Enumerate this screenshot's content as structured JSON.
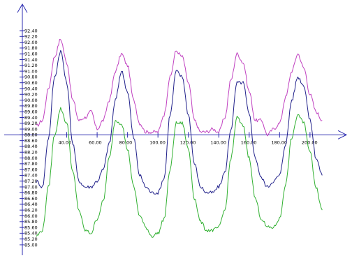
{
  "chart_data": {
    "type": "line",
    "x_ticks": [
      "40.00",
      "60.00",
      "80.00",
      "100.00",
      "120.00",
      "140.00",
      "160.00",
      "180.00",
      "200.00"
    ],
    "x_tick_values": [
      40,
      60,
      80,
      100,
      120,
      140,
      160,
      180,
      200
    ],
    "y_ticks": [
      "92.40",
      "92.20",
      "92.00",
      "91.80",
      "91.60",
      "91.40",
      "91.20",
      "91.00",
      "90.80",
      "90.60",
      "90.40",
      "90.20",
      "90.00",
      "89.80",
      "89.60",
      "89.40",
      "89.20",
      "89.00",
      "88.80",
      "88.60",
      "88.40",
      "88.20",
      "88.00",
      "87.80",
      "87.60",
      "87.40",
      "87.20",
      "87.00",
      "86.80",
      "86.60",
      "86.40",
      "86.20",
      "86.00",
      "85.80",
      "85.60",
      "85.40",
      "85.20",
      "85.00"
    ],
    "y_tick_values": [
      92.4,
      92.2,
      92.0,
      91.8,
      91.6,
      91.4,
      91.2,
      91.0,
      90.8,
      90.6,
      90.4,
      90.2,
      90.0,
      89.8,
      89.6,
      89.4,
      89.2,
      89.0,
      88.8,
      88.6,
      88.4,
      88.2,
      88.0,
      87.8,
      87.6,
      87.4,
      87.2,
      87.0,
      86.8,
      86.6,
      86.4,
      86.2,
      86.0,
      85.8,
      85.6,
      85.4,
      85.2,
      85.0
    ],
    "xlim": [
      20,
      212
    ],
    "ylim": [
      85.0,
      92.4
    ],
    "x_axis_at_y": 88.8,
    "grid": false,
    "legend": "none",
    "series": [
      {
        "color": "#c040c0",
        "x": [
          20,
          24,
          28,
          32,
          36,
          40,
          44,
          48,
          52,
          56,
          60,
          64,
          68,
          72,
          76,
          80,
          84,
          88,
          92,
          96,
          100,
          104,
          108,
          112,
          116,
          120,
          124,
          128,
          132,
          136,
          140,
          144,
          148,
          152,
          156,
          160,
          164,
          168,
          172,
          176,
          180,
          184,
          188,
          192,
          196,
          200,
          204,
          208
        ],
        "y": [
          89.1,
          89.3,
          90.4,
          91.5,
          92.1,
          91.3,
          90.0,
          89.3,
          89.4,
          89.6,
          89.0,
          89.3,
          90.0,
          91.0,
          91.6,
          91.2,
          90.0,
          89.2,
          88.9,
          88.9,
          88.9,
          89.5,
          90.8,
          91.7,
          91.5,
          90.6,
          89.3,
          88.9,
          88.9,
          89.0,
          88.9,
          89.4,
          90.7,
          91.6,
          91.3,
          90.3,
          89.3,
          89.3,
          88.8,
          89.0,
          89.2,
          90.1,
          91.0,
          91.6,
          91.1,
          90.2,
          89.6,
          89.3
        ]
      },
      {
        "color": "#20208a",
        "x": [
          20,
          24,
          28,
          32,
          36,
          40,
          44,
          48,
          52,
          56,
          60,
          64,
          68,
          72,
          76,
          80,
          84,
          88,
          92,
          96,
          100,
          104,
          108,
          112,
          116,
          120,
          124,
          128,
          132,
          136,
          140,
          144,
          148,
          152,
          156,
          160,
          164,
          168,
          172,
          176,
          180,
          184,
          188,
          192,
          196,
          200,
          204,
          208
        ],
        "y": [
          87.2,
          87.0,
          88.7,
          90.8,
          91.7,
          90.6,
          88.5,
          87.2,
          87.0,
          87.0,
          87.2,
          87.6,
          88.5,
          90.0,
          91.0,
          90.3,
          88.7,
          87.4,
          87.0,
          86.8,
          86.8,
          87.3,
          89.5,
          91.0,
          90.8,
          89.5,
          87.8,
          87.0,
          86.8,
          86.8,
          87.0,
          87.5,
          89.0,
          90.6,
          90.6,
          89.5,
          88.0,
          87.3,
          87.0,
          87.2,
          87.4,
          88.5,
          90.0,
          90.8,
          90.5,
          89.3,
          88.0,
          87.4
        ]
      },
      {
        "color": "#30b030",
        "x": [
          20,
          24,
          28,
          32,
          36,
          40,
          44,
          48,
          52,
          56,
          60,
          64,
          68,
          72,
          76,
          80,
          84,
          88,
          92,
          96,
          100,
          104,
          108,
          112,
          116,
          120,
          124,
          128,
          132,
          136,
          140,
          144,
          148,
          152,
          156,
          160,
          164,
          168,
          172,
          176,
          180,
          184,
          188,
          192,
          196,
          200,
          204,
          208
        ],
        "y": [
          85.3,
          85.5,
          87.0,
          88.8,
          89.7,
          89.2,
          87.5,
          86.2,
          85.5,
          85.4,
          85.9,
          86.5,
          88.0,
          89.3,
          89.2,
          88.3,
          87.0,
          86.0,
          85.6,
          85.3,
          85.4,
          85.9,
          87.6,
          89.2,
          89.2,
          88.3,
          86.6,
          85.8,
          85.5,
          85.5,
          85.6,
          86.2,
          88.0,
          89.4,
          89.1,
          88.0,
          86.6,
          85.9,
          85.6,
          85.6,
          85.9,
          87.1,
          88.7,
          89.5,
          89.2,
          88.2,
          87.0,
          86.2
        ]
      }
    ]
  }
}
